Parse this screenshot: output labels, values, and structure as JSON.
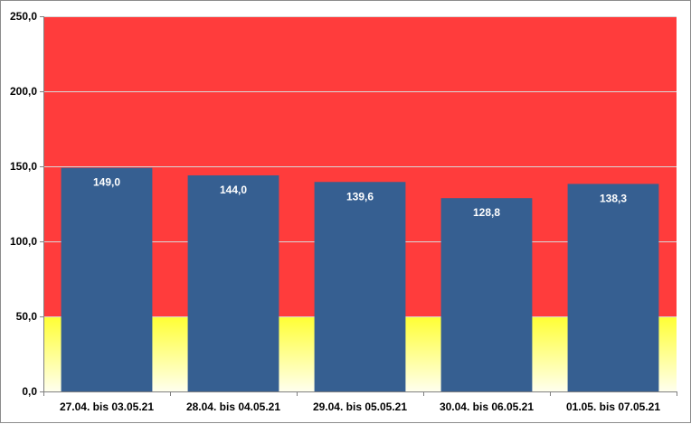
{
  "chart_data": {
    "type": "bar",
    "categories": [
      "27.04. bis 03.05.21",
      "28.04. bis 04.05.21",
      "29.04. bis 05.05.21",
      "30.04. bis 06.05.21",
      "01.05. bis 07.05.21"
    ],
    "values": [
      149.0,
      144.0,
      139.6,
      128.8,
      138.3
    ],
    "value_labels": [
      "149,0",
      "144,0",
      "139,6",
      "128,8",
      "138,3"
    ],
    "ylim": [
      0,
      250
    ],
    "yticks": [
      0,
      50,
      100,
      150,
      200,
      250
    ],
    "ytick_labels": [
      "0,0",
      "50,0",
      "100,0",
      "150,0",
      "200,0",
      "250,0"
    ],
    "bar_color": "#365f91",
    "background_bands": [
      {
        "from": 0,
        "to": 50,
        "color_top": "#ffff33",
        "color_bottom": "#ffffee"
      },
      {
        "from": 50,
        "to": 250,
        "color": "#ff3c3c"
      }
    ],
    "grid": true,
    "title": "",
    "xlabel": "",
    "ylabel": ""
  }
}
